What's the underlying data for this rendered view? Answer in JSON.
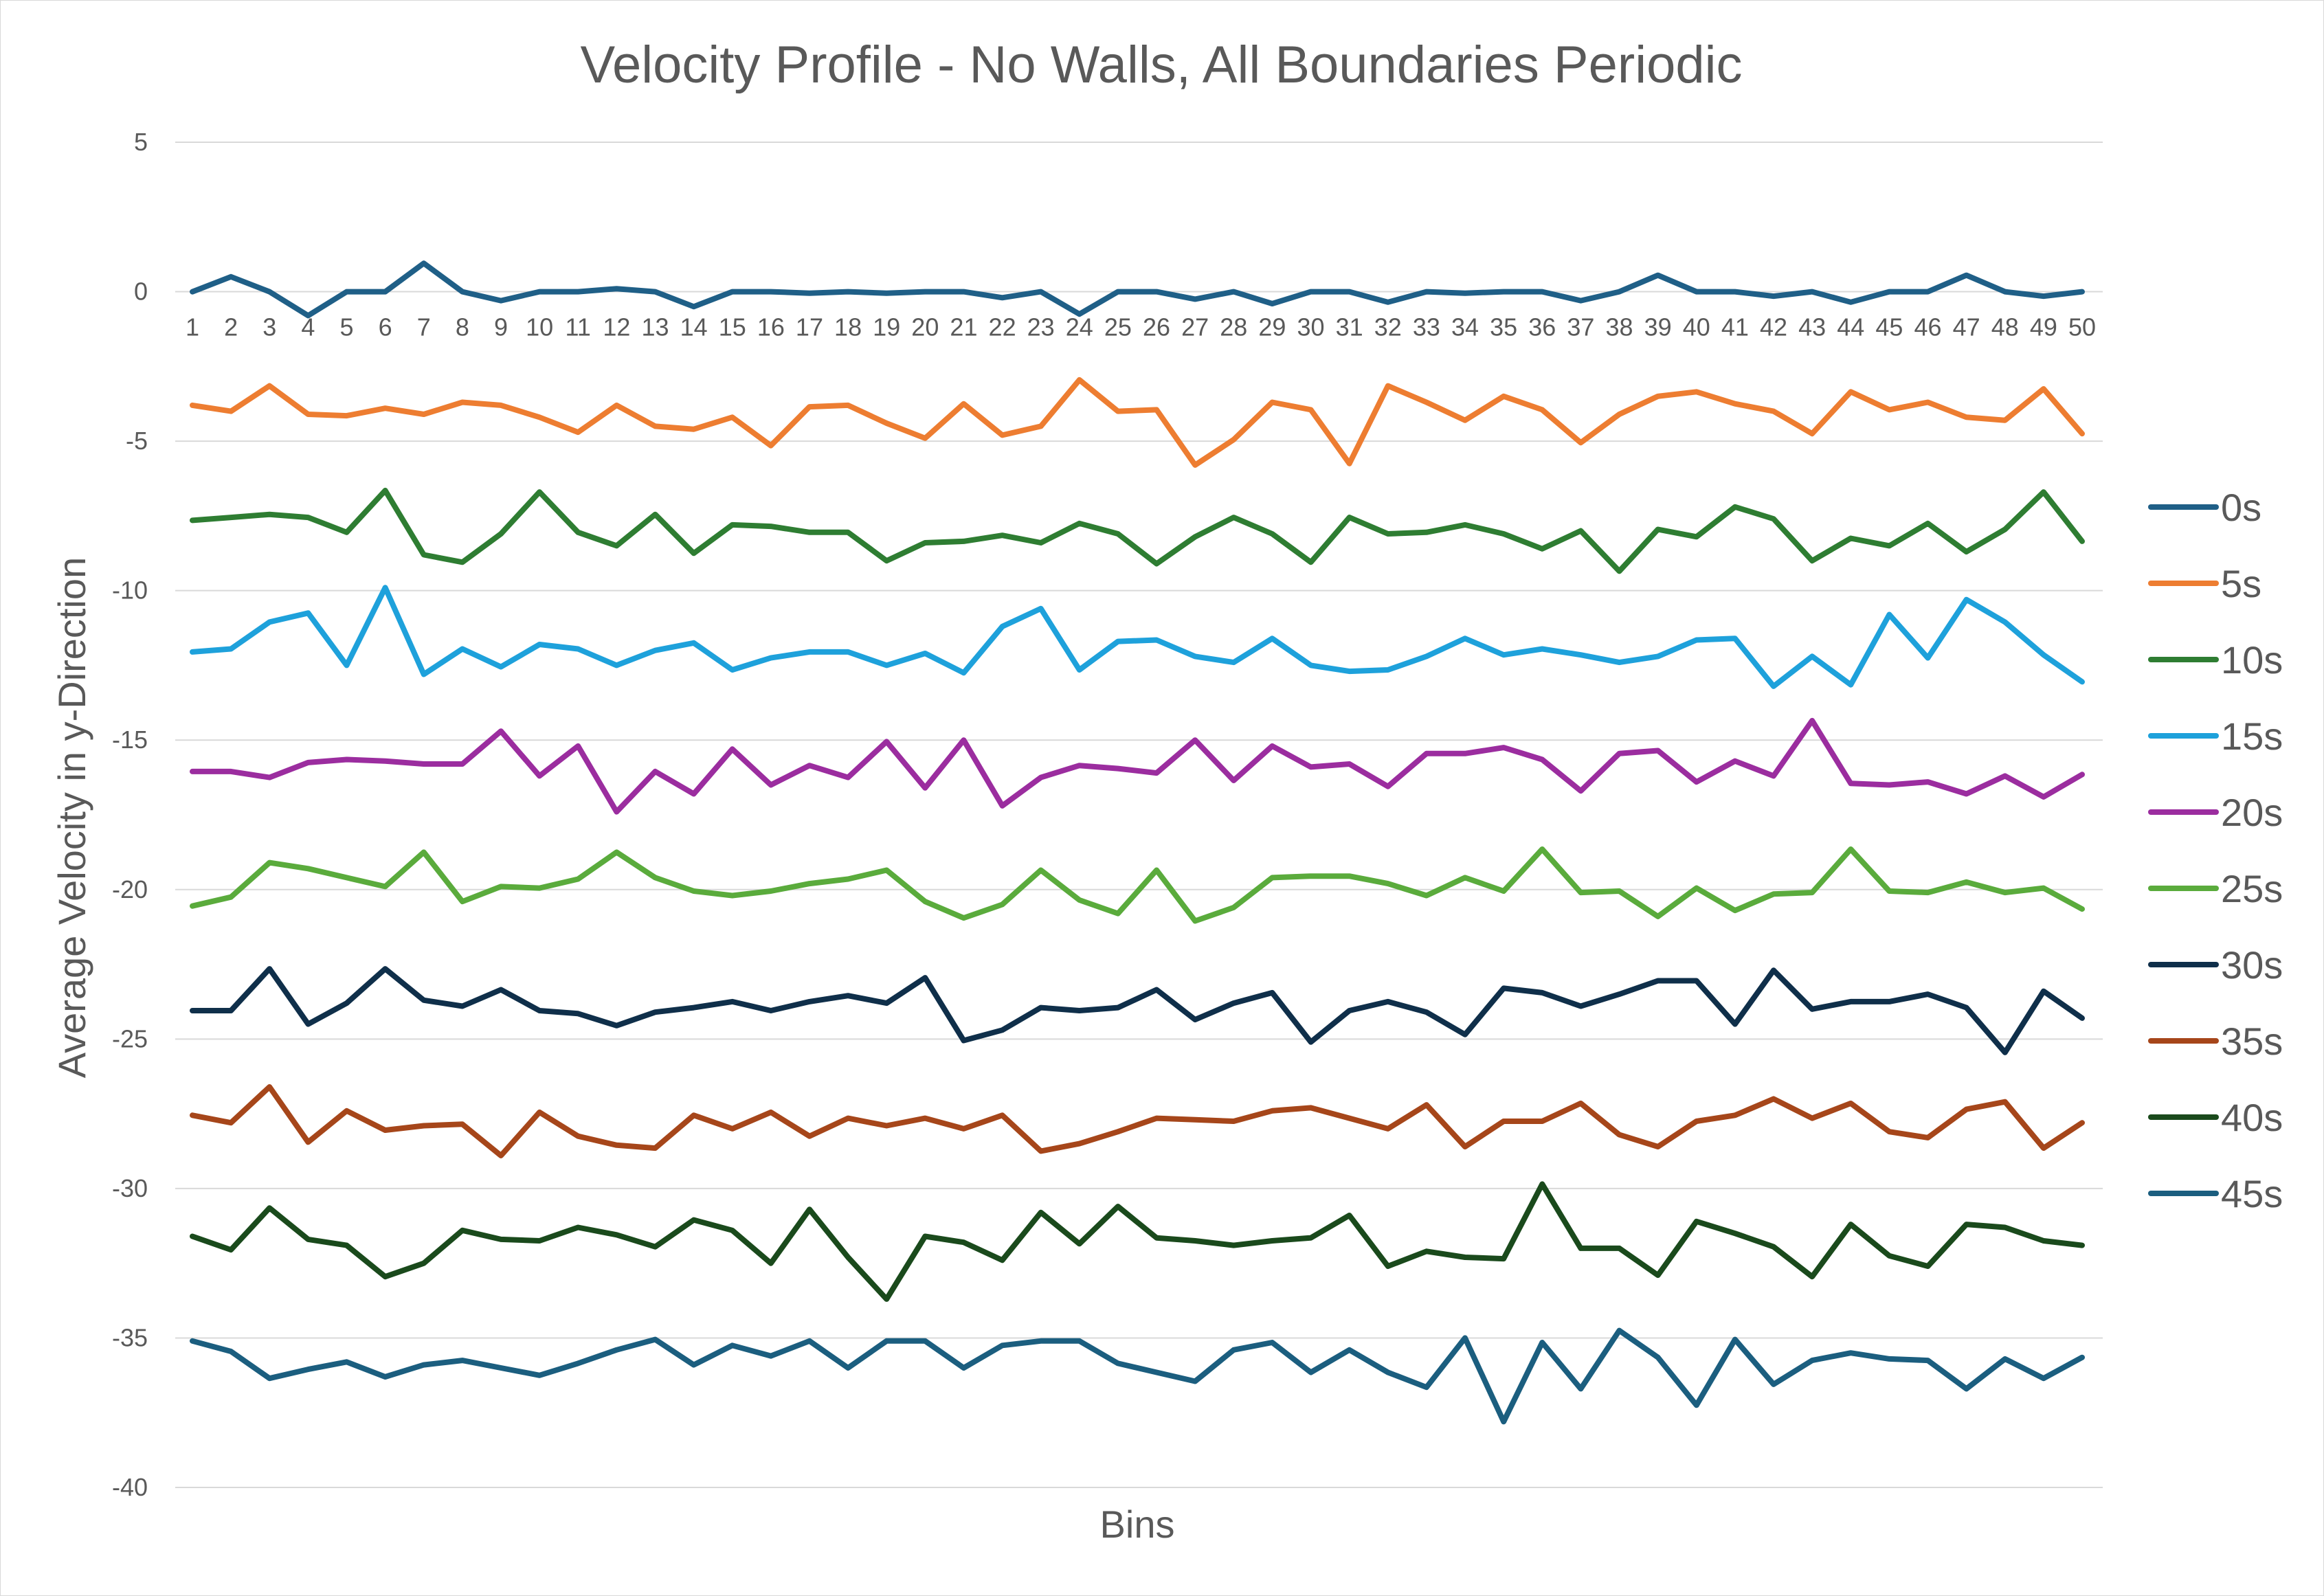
{
  "chart_data": {
    "type": "line",
    "title": "Velocity Profile - No Walls, All Boundaries Periodic",
    "xlabel": "Bins",
    "ylabel": "Average Velocity in y-Direction",
    "ylim": [
      -40,
      5
    ],
    "yticks": [
      5,
      0,
      -5,
      -10,
      -15,
      -20,
      -25,
      -30,
      -35,
      -40
    ],
    "x": [
      1,
      2,
      3,
      4,
      5,
      6,
      7,
      8,
      9,
      10,
      11,
      12,
      13,
      14,
      15,
      16,
      17,
      18,
      19,
      20,
      21,
      22,
      23,
      24,
      25,
      26,
      27,
      28,
      29,
      30,
      31,
      32,
      33,
      34,
      35,
      36,
      37,
      38,
      39,
      40,
      41,
      42,
      43,
      44,
      45,
      46,
      47,
      48,
      49,
      50
    ],
    "grid": true,
    "legend_position": "right",
    "series": [
      {
        "name": "0s",
        "color": "#1f5f87",
        "values": [
          0.0,
          0.5,
          0.0,
          -0.8,
          0.0,
          0.0,
          0.95,
          0.0,
          -0.3,
          0.0,
          0.0,
          0.1,
          0.0,
          -0.5,
          0.0,
          0.0,
          -0.05,
          0.0,
          -0.05,
          0.0,
          0.0,
          -0.2,
          0.0,
          -0.75,
          0.0,
          0.0,
          -0.25,
          0.0,
          -0.4,
          0.0,
          0.0,
          -0.35,
          0.0,
          -0.05,
          0.0,
          0.0,
          -0.3,
          0.0,
          0.55,
          0.0,
          0.0,
          -0.15,
          0.0,
          -0.35,
          0.0,
          0.0,
          0.55,
          0.0,
          -0.15,
          0.0
        ]
      },
      {
        "name": "5s",
        "color": "#ed7d31",
        "values": [
          -3.8,
          -4.0,
          -3.15,
          -4.1,
          -4.15,
          -3.9,
          -4.1,
          -3.7,
          -3.8,
          -4.2,
          -4.7,
          -3.8,
          -4.5,
          -4.6,
          -4.2,
          -5.15,
          -3.85,
          -3.8,
          -4.4,
          -4.9,
          -3.75,
          -4.8,
          -4.5,
          -2.95,
          -4.0,
          -3.95,
          -5.8,
          -4.95,
          -3.7,
          -3.95,
          -5.75,
          -3.15,
          -3.7,
          -4.3,
          -3.5,
          -3.95,
          -5.05,
          -4.1,
          -3.5,
          -3.35,
          -3.75,
          -4.0,
          -4.75,
          -3.35,
          -3.95,
          -3.7,
          -4.2,
          -4.3,
          -3.25,
          -4.75
        ]
      },
      {
        "name": "10s",
        "color": "#2e7d32",
        "values": [
          -7.65,
          -7.55,
          -7.45,
          -7.55,
          -8.05,
          -6.65,
          -8.8,
          -9.05,
          -8.1,
          -6.7,
          -8.05,
          -8.5,
          -7.45,
          -8.75,
          -7.8,
          -7.85,
          -8.05,
          -8.05,
          -9.0,
          -8.4,
          -8.35,
          -8.15,
          -8.4,
          -7.75,
          -8.1,
          -9.1,
          -8.2,
          -7.55,
          -8.1,
          -9.05,
          -7.55,
          -8.1,
          -8.05,
          -7.8,
          -8.1,
          -8.6,
          -8.0,
          -9.35,
          -7.95,
          -8.2,
          -7.2,
          -7.6,
          -9.0,
          -8.25,
          -8.5,
          -7.75,
          -8.7,
          -7.95,
          -6.7,
          -8.35
        ]
      },
      {
        "name": "15s",
        "color": "#1ea1db",
        "values": [
          -12.05,
          -11.95,
          -11.05,
          -10.75,
          -12.5,
          -9.9,
          -12.8,
          -11.95,
          -12.55,
          -11.8,
          -11.95,
          -12.5,
          -12.0,
          -11.75,
          -12.65,
          -12.25,
          -12.05,
          -12.05,
          -12.5,
          -12.1,
          -12.75,
          -11.2,
          -10.6,
          -12.65,
          -11.7,
          -11.65,
          -12.2,
          -12.4,
          -11.6,
          -12.5,
          -12.7,
          -12.65,
          -12.2,
          -11.6,
          -12.15,
          -11.95,
          -12.15,
          -12.4,
          -12.2,
          -11.65,
          -11.6,
          -13.2,
          -12.2,
          -13.15,
          -10.8,
          -12.25,
          -10.3,
          -11.05,
          -12.15,
          -13.05
        ]
      },
      {
        "name": "20s",
        "color": "#9b2d9f",
        "values": [
          -16.05,
          -16.05,
          -16.25,
          -15.75,
          -15.65,
          -15.7,
          -15.8,
          -15.8,
          -14.7,
          -16.2,
          -15.2,
          -17.4,
          -16.05,
          -16.8,
          -15.3,
          -16.5,
          -15.85,
          -16.25,
          -15.05,
          -16.6,
          -15.0,
          -17.2,
          -16.25,
          -15.85,
          -15.95,
          -16.1,
          -15.0,
          -16.35,
          -15.2,
          -15.9,
          -15.8,
          -16.55,
          -15.45,
          -15.45,
          -15.25,
          -15.65,
          -16.7,
          -15.45,
          -15.35,
          -16.4,
          -15.7,
          -16.2,
          -14.35,
          -16.45,
          -16.5,
          -16.4,
          -16.8,
          -16.2,
          -16.9,
          -16.15
        ]
      },
      {
        "name": "25s",
        "color": "#5aab3c",
        "values": [
          -20.55,
          -20.25,
          -19.1,
          -19.3,
          -19.6,
          -19.9,
          -18.75,
          -20.4,
          -19.9,
          -19.95,
          -19.65,
          -18.75,
          -19.6,
          -20.05,
          -20.2,
          -20.05,
          -19.8,
          -19.65,
          -19.35,
          -20.4,
          -20.95,
          -20.5,
          -19.35,
          -20.35,
          -20.8,
          -19.35,
          -21.05,
          -20.6,
          -19.6,
          -19.55,
          -19.55,
          -19.8,
          -20.2,
          -19.6,
          -20.05,
          -18.65,
          -20.1,
          -20.05,
          -20.9,
          -19.95,
          -20.7,
          -20.15,
          -20.1,
          -18.65,
          -20.05,
          -20.1,
          -19.75,
          -20.1,
          -19.95,
          -20.65
        ]
      },
      {
        "name": "30s",
        "color": "#0f2f4a",
        "values": [
          -24.05,
          -24.05,
          -22.65,
          -24.5,
          -23.8,
          -22.65,
          -23.7,
          -23.9,
          -23.35,
          -24.05,
          -24.15,
          -24.55,
          -24.1,
          -23.95,
          -23.75,
          -24.05,
          -23.75,
          -23.55,
          -23.8,
          -22.95,
          -25.05,
          -24.7,
          -23.95,
          -24.05,
          -23.95,
          -23.35,
          -24.35,
          -23.8,
          -23.45,
          -25.1,
          -24.05,
          -23.75,
          -24.1,
          -24.85,
          -23.3,
          -23.45,
          -23.9,
          -23.5,
          -23.05,
          -23.05,
          -24.5,
          -22.7,
          -24.0,
          -23.75,
          -23.75,
          -23.5,
          -23.95,
          -25.45,
          -23.4,
          -24.3
        ]
      },
      {
        "name": "35s",
        "color": "#a6461a",
        "values": [
          -27.55,
          -27.8,
          -26.6,
          -28.45,
          -27.4,
          -28.05,
          -27.9,
          -27.85,
          -28.9,
          -27.45,
          -28.25,
          -28.55,
          -28.65,
          -27.55,
          -28.0,
          -27.45,
          -28.25,
          -27.65,
          -27.9,
          -27.65,
          -28.0,
          -27.55,
          -28.75,
          -28.5,
          -28.1,
          -27.65,
          -27.7,
          -27.75,
          -27.4,
          -27.3,
          -27.65,
          -28.0,
          -27.2,
          -28.6,
          -27.75,
          -27.75,
          -27.15,
          -28.2,
          -28.6,
          -27.75,
          -27.55,
          -27.0,
          -27.65,
          -27.15,
          -28.1,
          -28.3,
          -27.35,
          -27.1,
          -28.65,
          -27.8
        ]
      },
      {
        "name": "40s",
        "color": "#1a4a1c",
        "values": [
          -31.6,
          -32.05,
          -30.65,
          -31.7,
          -31.9,
          -32.95,
          -32.5,
          -31.4,
          -31.7,
          -31.75,
          -31.3,
          -31.55,
          -31.95,
          -31.05,
          -31.4,
          -32.5,
          -30.7,
          -32.3,
          -33.7,
          -31.6,
          -31.8,
          -32.4,
          -30.8,
          -31.85,
          -30.6,
          -31.65,
          -31.75,
          -31.9,
          -31.75,
          -31.65,
          -30.9,
          -32.6,
          -32.1,
          -32.3,
          -32.35,
          -29.85,
          -32.0,
          -32.0,
          -32.9,
          -31.1,
          -31.5,
          -31.95,
          -32.95,
          -31.2,
          -32.25,
          -32.6,
          -31.2,
          -31.3,
          -31.75,
          -31.9
        ]
      },
      {
        "name": "45s",
        "color": "#1b5e7f",
        "values": [
          -35.1,
          -35.45,
          -36.35,
          -36.05,
          -35.8,
          -36.3,
          -35.9,
          -35.75,
          -36.0,
          -36.25,
          -35.85,
          -35.4,
          -35.05,
          -35.9,
          -35.25,
          -35.6,
          -35.1,
          -36.0,
          -35.1,
          -35.1,
          -36.0,
          -35.25,
          -35.1,
          -35.1,
          -35.85,
          -36.15,
          -36.45,
          -35.4,
          -35.15,
          -36.15,
          -35.4,
          -36.15,
          -36.65,
          -35.0,
          -37.8,
          -35.15,
          -36.7,
          -34.75,
          -35.65,
          -37.25,
          -35.05,
          -36.55,
          -35.75,
          -35.5,
          -35.7,
          -35.75,
          -36.7,
          -35.7,
          -36.35,
          -35.65
        ]
      }
    ]
  }
}
